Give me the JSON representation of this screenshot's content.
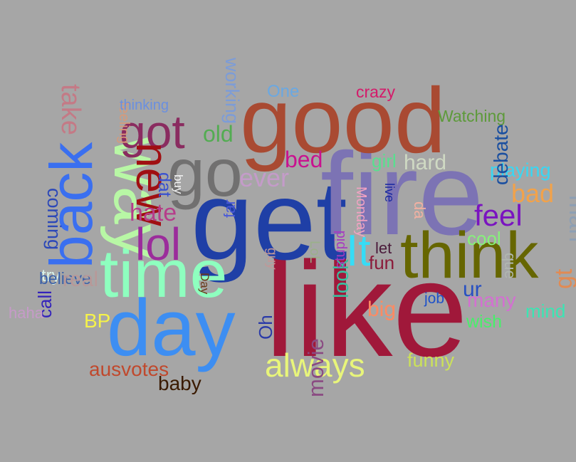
{
  "background": "#a6a6a6",
  "words": [
    {
      "text": "like",
      "color": "#a0183a"
    },
    {
      "text": "get",
      "color": "#1f3fa6"
    },
    {
      "text": "fire",
      "color": "#7c73b4"
    },
    {
      "text": "good",
      "color": "#a94a32"
    },
    {
      "text": "think",
      "color": "#666600"
    },
    {
      "text": "time",
      "color": "#8effbf"
    },
    {
      "text": "day",
      "color": "#3d8ef2"
    },
    {
      "text": "go",
      "color": "#717070"
    },
    {
      "text": "way",
      "color": "#b8f7a5"
    },
    {
      "text": "back",
      "color": "#3a6ff0"
    },
    {
      "text": "got",
      "color": "#8a2c60"
    },
    {
      "text": "lol",
      "color": "#9b2c9b"
    },
    {
      "text": "new",
      "color": "#a00f12"
    },
    {
      "text": "It",
      "color": "#36dcf6"
    },
    {
      "text": "feel",
      "color": "#7a13c0"
    },
    {
      "text": "bad",
      "color": "#f2a24a"
    },
    {
      "text": "man",
      "color": "#8d9fb4"
    },
    {
      "text": "always",
      "color": "#e8f57a"
    },
    {
      "text": "ever",
      "color": "#c49bc9"
    },
    {
      "text": "hate",
      "color": "#b63d8a"
    },
    {
      "text": "bed",
      "color": "#c9128f"
    },
    {
      "text": "old",
      "color": "#53ac52"
    },
    {
      "text": "ausvotes",
      "color": "#c0492d"
    },
    {
      "text": "baby",
      "color": "#3a1a00"
    },
    {
      "text": "Watching",
      "color": "#5d9a3a"
    },
    {
      "text": "crazy",
      "color": "#d41a6a"
    },
    {
      "text": "One",
      "color": "#6aa8e2"
    },
    {
      "text": "hard",
      "color": "#cfd9c3"
    },
    {
      "text": "girl",
      "color": "#58e08f"
    },
    {
      "text": "playing",
      "color": "#38d7f3"
    },
    {
      "text": "cool",
      "color": "#86f27a"
    },
    {
      "text": "debate",
      "color": "#1a4fa0"
    },
    {
      "text": "ur",
      "color": "#2850c2"
    },
    {
      "text": "mind",
      "color": "#3ae6b3"
    },
    {
      "text": "many",
      "color": "#d46fd2"
    },
    {
      "text": "wish",
      "color": "#48ef6a"
    },
    {
      "text": "funny",
      "color": "#cbe15a"
    },
    {
      "text": "job",
      "color": "#1f52c9"
    },
    {
      "text": "big",
      "color": "#ff8a62"
    },
    {
      "text": "fun",
      "color": "#8b1b3a"
    },
    {
      "text": "let",
      "color": "#4a1a3a"
    },
    {
      "text": "que",
      "color": "#b0b6b0"
    },
    {
      "text": "gt",
      "color": "#e28a52"
    },
    {
      "text": "take",
      "color": "#c47a86"
    },
    {
      "text": "call",
      "color": "#3322bb"
    },
    {
      "text": "coming",
      "color": "#2c48b8"
    },
    {
      "text": "try",
      "color": "#d8f2ea"
    },
    {
      "text": "haha",
      "color": "#c69ac8"
    },
    {
      "text": "believe",
      "color": "#3a60a8"
    },
    {
      "text": "real",
      "color": "#b89898"
    },
    {
      "text": "BP",
      "color": "#f5f24a"
    },
    {
      "text": "working",
      "color": "#7c9cd8"
    },
    {
      "text": "feeling",
      "color": "#d69a7a"
    },
    {
      "text": "thinking",
      "color": "#6a8fe0"
    },
    {
      "text": "far",
      "color": "#4a5ad8"
    },
    {
      "text": "dat",
      "color": "#3a52d0"
    },
    {
      "text": "buy",
      "color": "#f2f2f2"
    },
    {
      "text": "Day",
      "color": "#6a3a1a"
    },
    {
      "text": "Oh",
      "color": "#2a3aa8"
    },
    {
      "text": "guy",
      "color": "#c09898"
    },
    {
      "text": "LoL",
      "color": "#9ab08a"
    },
    {
      "text": "movie",
      "color": "#8a4a82"
    },
    {
      "text": "look",
      "color": "#3ac0a0"
    },
    {
      "text": "stupid",
      "color": "#a63ac0"
    },
    {
      "text": "Monday",
      "color": "#f2a2c2"
    },
    {
      "text": "live",
      "color": "#1a2aa0"
    },
    {
      "text": "da",
      "color": "#f2b0a2"
    },
    {
      "text": "da",
      "color": "#a07ad0"
    },
    {
      "text": "big",
      "color": "#d06a8a"
    },
    {
      "text": "let",
      "color": "#8a3a3a"
    }
  ]
}
